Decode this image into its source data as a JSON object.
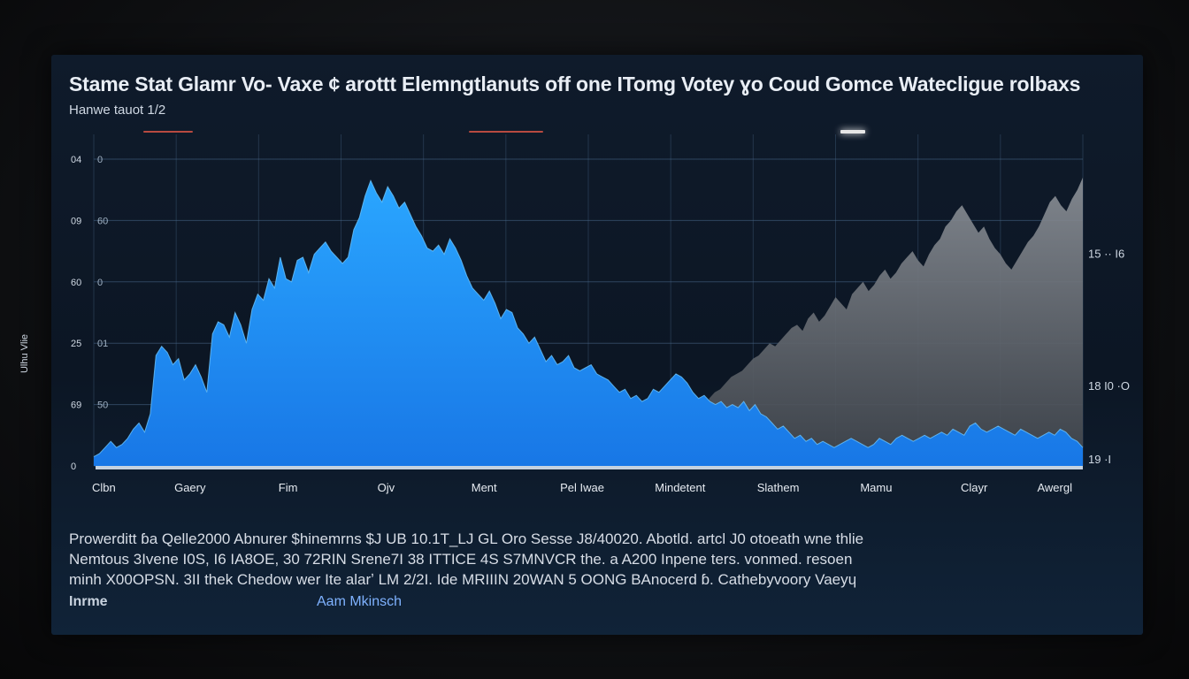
{
  "chart_data": {
    "type": "area",
    "title": "Stame Stat Glamr Vo- Vaxe  ¢ arottt Elemngtlanuts off one  ITomg Votey ɣo Coud Gomce Watecligue  rolbaxs",
    "subtitle": "Hanwe tauot 1/2",
    "ylabel": "Ulhu Vlie",
    "left_ticks": [
      {
        "outer": "04",
        "inner": "0",
        "value": 100
      },
      {
        "outer": "09",
        "inner": "60",
        "value": 80
      },
      {
        "outer": "60",
        "inner": "0",
        "value": 60
      },
      {
        "outer": "25",
        "inner": "01",
        "value": 40
      },
      {
        "outer": "69",
        "inner": "50",
        "value": 20
      },
      {
        "outer": "0",
        "inner": "",
        "value": 0
      }
    ],
    "right_ticks": [
      {
        "label": "15 ·· I6",
        "value": 69
      },
      {
        "label": "18 I0 ·O",
        "value": 26
      },
      {
        "label": "19 ·I",
        "value": 2
      }
    ],
    "x_labels": [
      "Clbn",
      "Gaery",
      "Fim",
      "Ojv",
      "Ment",
      "Pel Iwae",
      "Mindetent",
      "Slathem",
      "Mamu",
      "Clayr",
      "Awergl"
    ],
    "ylim": [
      0,
      100
    ],
    "series": [
      {
        "values": [
          3,
          4,
          6,
          8,
          6,
          7,
          9,
          12,
          14,
          11,
          17,
          36,
          39,
          37,
          33,
          35,
          28,
          30,
          33,
          29,
          24,
          43,
          47,
          46,
          42,
          50,
          46,
          40,
          51,
          56,
          54,
          61,
          58,
          68,
          61,
          60,
          67,
          68,
          63,
          69,
          71,
          73,
          70,
          68,
          66,
          68,
          77,
          81,
          88,
          93,
          89,
          86,
          91,
          88,
          84,
          86,
          82,
          78,
          75,
          71,
          70,
          72,
          69,
          74,
          71,
          67,
          62,
          58,
          56,
          54,
          57,
          53,
          48,
          51,
          50,
          45,
          43,
          40,
          42,
          38,
          34,
          36,
          33,
          34,
          36,
          32,
          31,
          32,
          33,
          30,
          29,
          28,
          26,
          24,
          25,
          22,
          23,
          21,
          22,
          25,
          24,
          26,
          28,
          30,
          29,
          27,
          24,
          22,
          23,
          21,
          20,
          21,
          19,
          20,
          19,
          21,
          18,
          20,
          17,
          16,
          14,
          12,
          13,
          11,
          9,
          10,
          8,
          9,
          7,
          8,
          7,
          6,
          7,
          8,
          9,
          8,
          7,
          6,
          7,
          9,
          8,
          7,
          9,
          10,
          9,
          8,
          9,
          10,
          9,
          10,
          11,
          10,
          12,
          11,
          10,
          13,
          14,
          12,
          11,
          12,
          13,
          12,
          11,
          10,
          12,
          11,
          10,
          9,
          10,
          11,
          10,
          12,
          11,
          9,
          8,
          6
        ],
        "color": "#1f9bff"
      },
      {
        "values": [
          0,
          0,
          0,
          0,
          0,
          0,
          0,
          0,
          0,
          0,
          0,
          0,
          0,
          0,
          0,
          0,
          0,
          0,
          0,
          0,
          0,
          0,
          0,
          0,
          0,
          0,
          0,
          0,
          0,
          0,
          0,
          0,
          0,
          0,
          0,
          0,
          0,
          0,
          0,
          0,
          0,
          0,
          0,
          0,
          0,
          0,
          0,
          0,
          0,
          0,
          0,
          0,
          0,
          0,
          0,
          0,
          0,
          0,
          0,
          0,
          0,
          0,
          0,
          0,
          0,
          0,
          0,
          0,
          0,
          0,
          0,
          0,
          0,
          0,
          0,
          0,
          0,
          0,
          0,
          0,
          0,
          0,
          0,
          0,
          0,
          0,
          0,
          0,
          0,
          0,
          0,
          0,
          0,
          0,
          0,
          0,
          0,
          0,
          0,
          0,
          0,
          0,
          0,
          0,
          0,
          0,
          0,
          0,
          0,
          0,
          0,
          0,
          22,
          24,
          25,
          27,
          29,
          30,
          31,
          33,
          35,
          36,
          38,
          40,
          39,
          41,
          43,
          45,
          46,
          44,
          48,
          50,
          47,
          49,
          52,
          55,
          53,
          51,
          56,
          58,
          60,
          57,
          59,
          62,
          64,
          61,
          63,
          66,
          68,
          70,
          67,
          65,
          69,
          72,
          74,
          78,
          80,
          83,
          85,
          82,
          79,
          76,
          78,
          74,
          71,
          69,
          66,
          64,
          67,
          70,
          73,
          75,
          78,
          82,
          86,
          88,
          85,
          83,
          87,
          90,
          94
        ],
        "color": "#6e737b"
      }
    ]
  },
  "notes": [
    "Prowerditt ɓa  Qelle2000  Abnurer  $hinemrns  $J  UB  10.1T_LJ  GL  Oro  Sesse   J8/40020.  Abotld.  artcl  J0  otoeath  wne  thlie",
    "Nemtous  3Ivene  I0S,  I6  IA8OE,  30  72RIN  Srene7I  38  ITTICE  4S  S7MNVCR  the.  a  A200  Inpene  ters.  vonmed.  resoen",
    "minh  X00OPSN.  3II  thek  Chedow  wer  Ite  alarʼ  LM  2/2I.  Ide  MRIIIN  20WAN  5  OONG  BAnocerd  ɓ.  Cathebyvoory  Vaeyɥ"
  ],
  "footer": {
    "left": "Inrme",
    "right": "Aam Mkinsch"
  },
  "colors": {
    "accent_blue": "#1f9bff",
    "accent_gray": "#6e737b",
    "marker_red": "#c0463c"
  }
}
